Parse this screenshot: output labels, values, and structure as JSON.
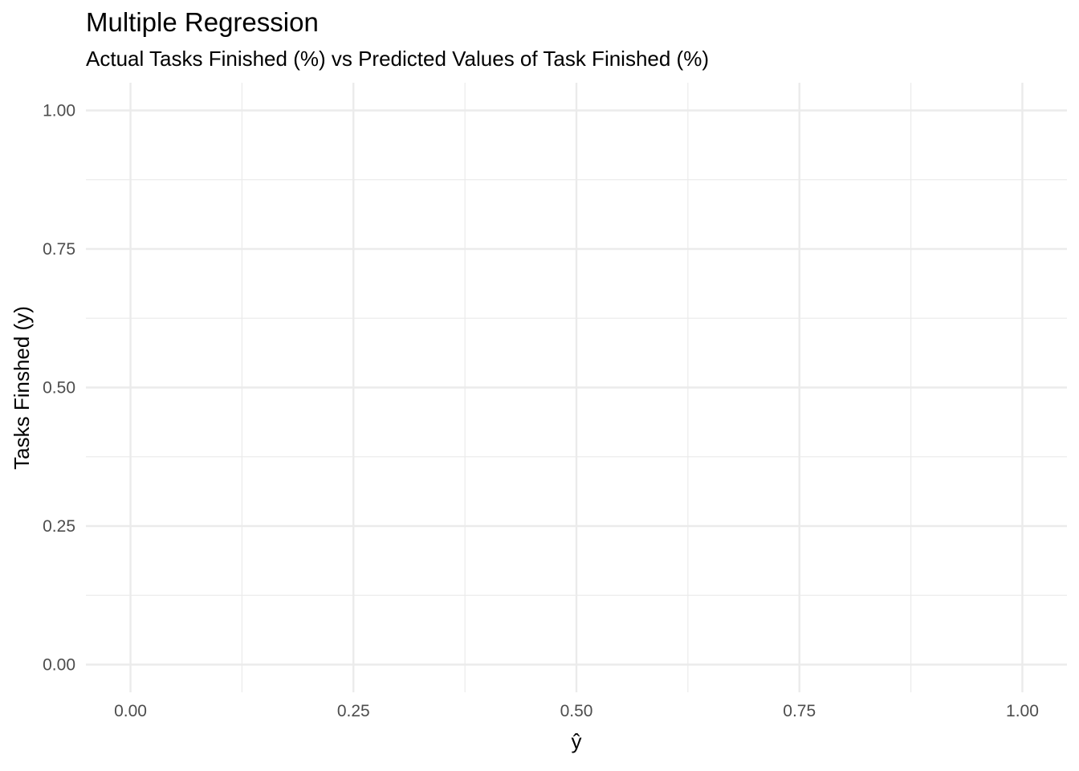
{
  "chart_data": {
    "type": "scatter",
    "title": "Multiple Regression",
    "subtitle": "Actual Tasks Finished (%) vs Predicted Values of Task Finished (%)",
    "xlabel": "ŷ",
    "ylabel": "Tasks Finshed (y)",
    "xlim": [
      -0.05,
      1.05
    ],
    "ylim": [
      -0.05,
      1.05
    ],
    "x_ticks": [
      "0.00",
      "0.25",
      "0.50",
      "0.75",
      "1.00"
    ],
    "y_ticks": [
      "0.00",
      "0.25",
      "0.50",
      "0.75",
      "1.00"
    ],
    "x_tick_values": [
      0,
      0.25,
      0.5,
      0.75,
      1
    ],
    "y_tick_values": [
      0,
      0.25,
      0.5,
      0.75,
      1
    ],
    "minor_grid_values": [
      0.125,
      0.375,
      0.625,
      0.875
    ],
    "grid": true,
    "legend": "none",
    "background_color": "#ffffff",
    "grid_color": "#ebebeb",
    "series": [
      {
        "x": [],
        "y": []
      }
    ]
  }
}
